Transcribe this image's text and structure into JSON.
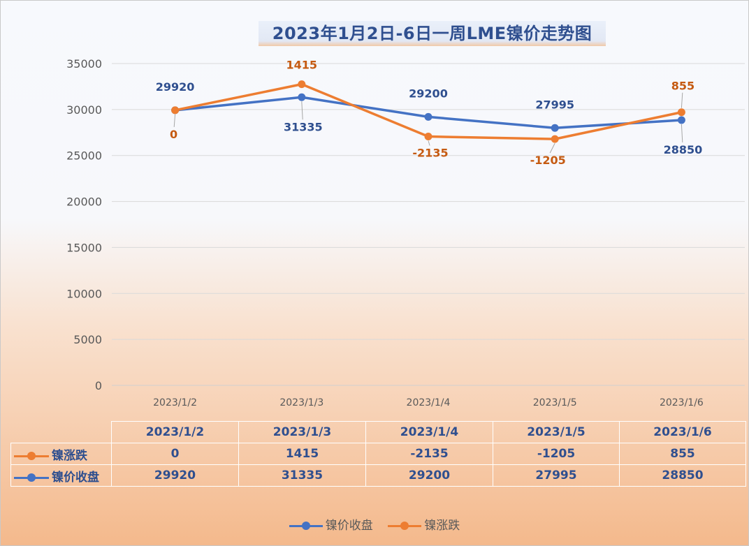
{
  "title": "2023年1月2日-6日一周LME镍价走势图",
  "colors": {
    "close": "#4472c4",
    "change": "#ed7d31",
    "close_label": "#2f4f8f",
    "change_label": "#c55a11"
  },
  "chart_data": {
    "type": "line",
    "title": "2023年1月2日-6日一周LME镍价走势图",
    "categories": [
      "2023/1/2",
      "2023/1/3",
      "2023/1/4",
      "2023/1/5",
      "2023/1/6"
    ],
    "y_ticks": [
      "0",
      "5000",
      "10000",
      "15000",
      "20000",
      "25000",
      "30000",
      "35000"
    ],
    "ylim": [
      0,
      35000
    ],
    "grid": true,
    "legend_position": "bottom",
    "series": [
      {
        "name": "镍价收盘",
        "color": "#4472c4",
        "values": [
          29920,
          31335,
          29200,
          27995,
          28850
        ],
        "labels": [
          "29920",
          "31335",
          "29200",
          "27995",
          "28850"
        ]
      },
      {
        "name": "镍涨跌",
        "color": "#ed7d31",
        "values": [
          29920,
          32750,
          27065,
          26790,
          29705
        ],
        "labels": [
          "0",
          "1415",
          "-2135",
          "-1205",
          "855"
        ]
      }
    ]
  },
  "table": {
    "headers": [
      "2023/1/2",
      "2023/1/3",
      "2023/1/4",
      "2023/1/5",
      "2023/1/6"
    ],
    "rows": [
      {
        "label": "镍涨跌",
        "values": [
          "0",
          "1415",
          "-2135",
          "-1205",
          "855"
        ]
      },
      {
        "label": "镍价收盘",
        "values": [
          "29920",
          "31335",
          "29200",
          "27995",
          "28850"
        ]
      }
    ]
  },
  "legend": [
    {
      "label": "镍价收盘",
      "icon": "blue-line-marker"
    },
    {
      "label": "镍涨跌",
      "icon": "orange-line-marker"
    }
  ]
}
